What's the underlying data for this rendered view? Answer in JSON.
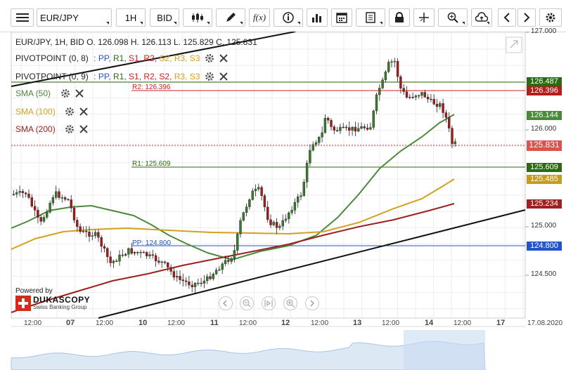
{
  "toolbar": {
    "symbol": "EUR/JPY",
    "period": "1H",
    "side": "BID",
    "icons": [
      "menu-icon",
      "candlestick-icon",
      "draw-icon",
      "function-icon",
      "info-icon",
      "volume-icon",
      "calendar-icon",
      "document-icon",
      "lock-icon",
      "crosshair-icon",
      "zoom-icon",
      "cloud-upload-icon",
      "chevron-left-icon",
      "chevron-right-icon",
      "gear-icon"
    ]
  },
  "legend": {
    "ohlc": "EUR/JPY, 1H, BID   O. 126.098 H. 126.113 L. 125.829 C. 125.831",
    "pivot1_name": "PIVOTPOINT (0, 8)",
    "pivot2_name": "PIVOTPOINT (0, 9)",
    "pivot_sep": ":",
    "pivot_items": [
      "PP,",
      "R1,",
      "S1,",
      "R2,",
      "S2,",
      "R3,",
      "S3"
    ],
    "sma50": "SMA (50)",
    "sma100": "SMA (100)",
    "sma200": "SMA (200)"
  },
  "lines": {
    "r2": "R2: 126.396",
    "r1": "R1: 125.609",
    "pp": "PP: 124.800"
  },
  "price_labels": {
    "a": "126.487",
    "b": "126.396",
    "c": "126.144",
    "d": "125.831",
    "e": "125.609",
    "f": "125.485",
    "g": "125.234",
    "h": "124.800"
  },
  "y_axis": [
    "127.000",
    "126.000",
    "125.000",
    "124.500"
  ],
  "x_axis": {
    "times": [
      "12:00",
      "12:00",
      "12:00",
      "12:00",
      "12:00",
      "12:00",
      "12:00"
    ],
    "days": [
      "07",
      "10",
      "11",
      "12",
      "13",
      "14",
      "17"
    ],
    "date": "17.08.2020"
  },
  "brand": {
    "powered": "Powered by",
    "name": "DUKASCOPY",
    "sub": "Swiss Banking Group"
  },
  "colors": {
    "sma50": "#4a8a3a",
    "sma100": "#d4a020",
    "sma200": "#9e2020",
    "up": "#3b7a2e",
    "down": "#a51b1b",
    "pp": "#2255cc",
    "r1": "#2a6a10",
    "r2": "#cc2020"
  }
}
